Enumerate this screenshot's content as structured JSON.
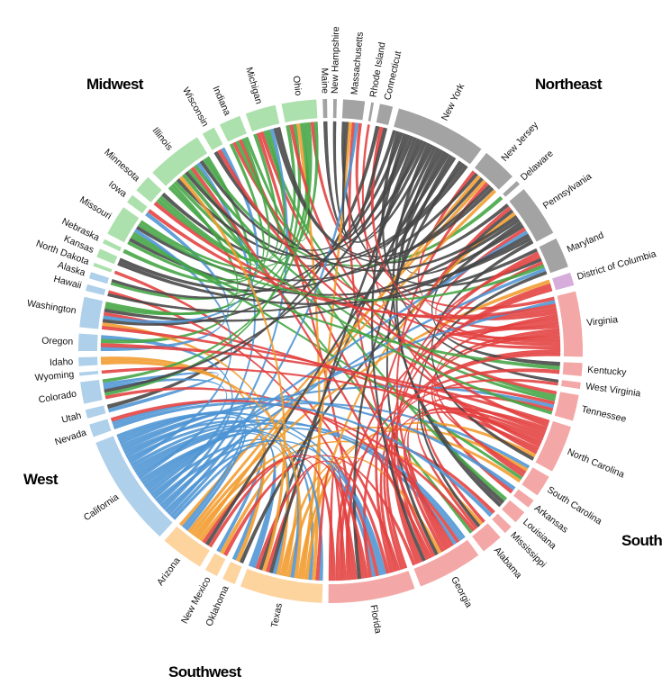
{
  "regions": [
    {
      "name": "Northeast",
      "ring_color": "#a3a3a3",
      "chord_color": "#454545"
    },
    {
      "name": "South",
      "ring_color": "#f4a7a7",
      "chord_color": "#e2403f"
    },
    {
      "name": "Southwest",
      "ring_color": "#fdd39e",
      "chord_color": "#f19b2c"
    },
    {
      "name": "West",
      "ring_color": "#afd0ea",
      "chord_color": "#4d94d4"
    },
    {
      "name": "Midwest",
      "ring_color": "#ace0ac",
      "chord_color": "#43a543"
    }
  ],
  "special_colors": {
    "District of Columbia": {
      "ring_color": "#d7aedb",
      "chord_color": "#a25cb5"
    }
  },
  "states": [
    {
      "name": "Maine",
      "region": "Northeast",
      "weight": 1
    },
    {
      "name": "New Hampshire",
      "region": "Northeast",
      "weight": 0.8
    },
    {
      "name": "Massachusetts",
      "region": "Northeast",
      "weight": 5
    },
    {
      "name": "Rhode Island",
      "region": "Northeast",
      "weight": 0.6
    },
    {
      "name": "Connecticut",
      "region": "Northeast",
      "weight": 3
    },
    {
      "name": "New York",
      "region": "Northeast",
      "weight": 21
    },
    {
      "name": "New Jersey",
      "region": "Northeast",
      "weight": 8
    },
    {
      "name": "Delaware",
      "region": "Northeast",
      "weight": 1
    },
    {
      "name": "Pennsylvania",
      "region": "Northeast",
      "weight": 12
    },
    {
      "name": "Maryland",
      "region": "Northeast",
      "weight": 7
    },
    {
      "name": "District of Columbia",
      "region": "South",
      "weight": 3
    },
    {
      "name": "Virginia",
      "region": "South",
      "weight": 15
    },
    {
      "name": "Kentucky",
      "region": "South",
      "weight": 3
    },
    {
      "name": "West Virginia",
      "region": "South",
      "weight": 1.5
    },
    {
      "name": "Tennessee",
      "region": "South",
      "weight": 6
    },
    {
      "name": "North Carolina",
      "region": "South",
      "weight": 11
    },
    {
      "name": "South Carolina",
      "region": "South",
      "weight": 5
    },
    {
      "name": "Arkansas",
      "region": "South",
      "weight": 2
    },
    {
      "name": "Louisiana",
      "region": "South",
      "weight": 3
    },
    {
      "name": "Mississippi",
      "region": "South",
      "weight": 2
    },
    {
      "name": "Alabama",
      "region": "South",
      "weight": 5
    },
    {
      "name": "Georgia",
      "region": "South",
      "weight": 15
    },
    {
      "name": "Florida",
      "region": "South",
      "weight": 20
    },
    {
      "name": "Texas",
      "region": "Southwest",
      "weight": 19
    },
    {
      "name": "Oklahoma",
      "region": "Southwest",
      "weight": 3
    },
    {
      "name": "New Mexico",
      "region": "Southwest",
      "weight": 3
    },
    {
      "name": "Arizona",
      "region": "Southwest",
      "weight": 10
    },
    {
      "name": "California",
      "region": "West",
      "weight": 26
    },
    {
      "name": "Nevada",
      "region": "West",
      "weight": 3
    },
    {
      "name": "Utah",
      "region": "West",
      "weight": 2
    },
    {
      "name": "Colorado",
      "region": "West",
      "weight": 5
    },
    {
      "name": "Wyoming",
      "region": "West",
      "weight": 0.8
    },
    {
      "name": "Idaho",
      "region": "West",
      "weight": 2
    },
    {
      "name": "Oregon",
      "region": "West",
      "weight": 4
    },
    {
      "name": "Washington",
      "region": "West",
      "weight": 7
    },
    {
      "name": "Hawaii",
      "region": "West",
      "weight": 1.5
    },
    {
      "name": "Alaska",
      "region": "West",
      "weight": 1.5
    },
    {
      "name": "North Dakota",
      "region": "Midwest",
      "weight": 0.8
    },
    {
      "name": "Kansas",
      "region": "Midwest",
      "weight": 2
    },
    {
      "name": "Nebraska",
      "region": "Midwest",
      "weight": 1
    },
    {
      "name": "Missouri",
      "region": "Midwest",
      "weight": 7
    },
    {
      "name": "Iowa",
      "region": "Midwest",
      "weight": 2
    },
    {
      "name": "Minnesota",
      "region": "Midwest",
      "weight": 4
    },
    {
      "name": "Illinois",
      "region": "Midwest",
      "weight": 13
    },
    {
      "name": "Wisconsin",
      "region": "Midwest",
      "weight": 3
    },
    {
      "name": "Indiana",
      "region": "Midwest",
      "weight": 5
    },
    {
      "name": "Michigan",
      "region": "Midwest",
      "weight": 7
    },
    {
      "name": "Ohio",
      "region": "Midwest",
      "weight": 8
    }
  ]
}
